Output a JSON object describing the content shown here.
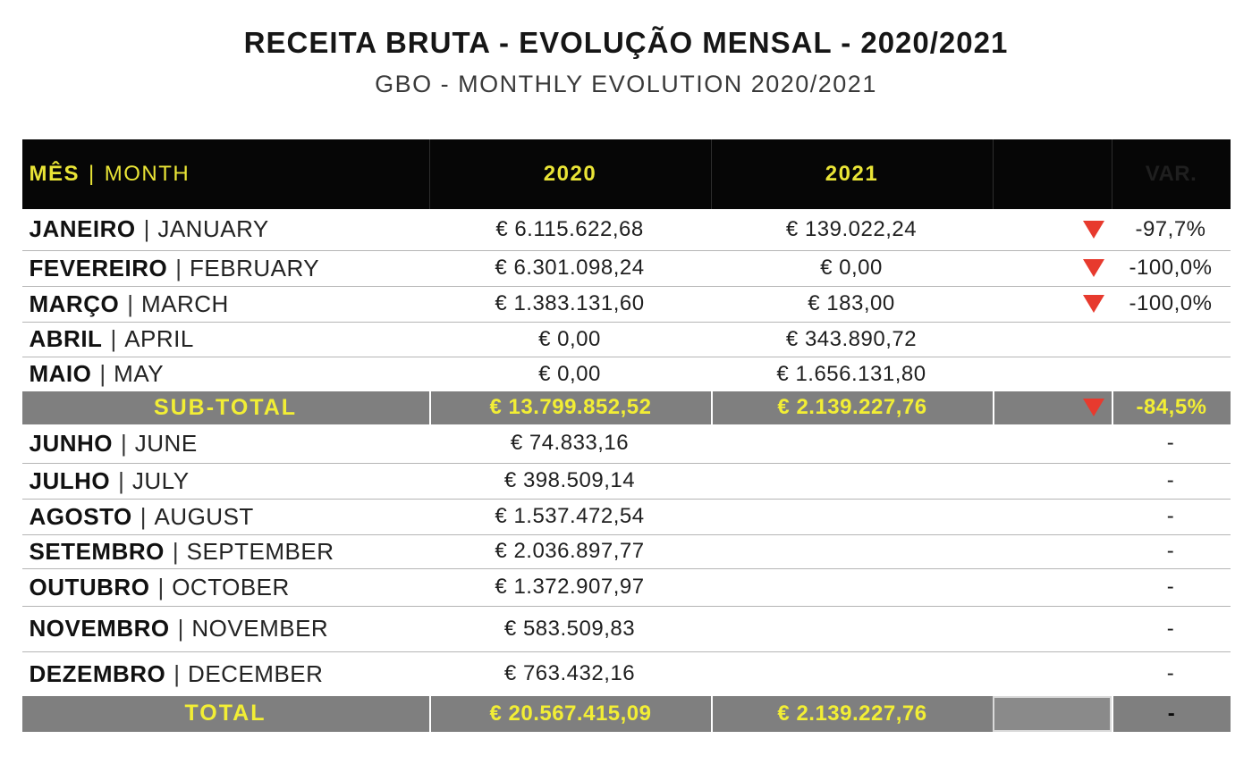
{
  "title": "RECEITA BRUTA - EVOLUÇÃO MENSAL - 2020/2021",
  "subtitle": "GBO - MONTHLY EVOLUTION 2020/2021",
  "colors": {
    "header_bg": "#060606",
    "accent_yellow": "#e9e436",
    "summary_bg": "#7f7f7f",
    "summary_yellow": "#f2ee35",
    "negative_red": "#e73a2e",
    "row_line": "#b5b5b5",
    "text_dark": "#1f1f1f"
  },
  "table": {
    "header": {
      "month_pt": "MÊS",
      "month_en": "MONTH",
      "col_2020": "2020",
      "col_2021": "2021",
      "col_var": "VAR."
    },
    "rows": [
      {
        "type": "month",
        "pt": "JANEIRO",
        "en": "JANUARY",
        "v2020": "€ 6.115.622,68",
        "v2021": "€ 139.022,24",
        "trend": "down",
        "var": "-97,7%"
      },
      {
        "type": "month",
        "pt": "FEVEREIRO",
        "en": "FEBRUARY",
        "v2020": "€ 6.301.098,24",
        "v2021": "€ 0,00",
        "trend": "down",
        "var": "-100,0%"
      },
      {
        "type": "month",
        "pt": "MARÇO",
        "en": "MARCH",
        "v2020": "€ 1.383.131,60",
        "v2021": "€ 183,00",
        "trend": "down",
        "var": "-100,0%"
      },
      {
        "type": "month",
        "pt": "ABRIL",
        "en": "APRIL",
        "v2020": "€ 0,00",
        "v2021": "€ 343.890,72",
        "trend": "none",
        "var": ""
      },
      {
        "type": "month",
        "pt": "MAIO",
        "en": "MAY",
        "v2020": "€ 0,00",
        "v2021": "€ 1.656.131,80",
        "trend": "none",
        "var": ""
      },
      {
        "type": "subtotal",
        "label": "SUB-TOTAL",
        "v2020": "€ 13.799.852,52",
        "v2021": "€ 2.139.227,76",
        "trend": "down",
        "var": "-84,5%"
      },
      {
        "type": "month",
        "pt": "JUNHO",
        "en": "JUNE",
        "v2020": "€ 74.833,16",
        "v2021": "",
        "trend": "none",
        "var": "-"
      },
      {
        "type": "month",
        "pt": "JULHO",
        "en": "JULY",
        "v2020": "€ 398.509,14",
        "v2021": "",
        "trend": "none",
        "var": "-"
      },
      {
        "type": "month",
        "pt": "AGOSTO",
        "en": "AUGUST",
        "v2020": "€ 1.537.472,54",
        "v2021": "",
        "trend": "none",
        "var": "-"
      },
      {
        "type": "month",
        "pt": "SETEMBRO",
        "en": "SEPTEMBER",
        "v2020": "€ 2.036.897,77",
        "v2021": "",
        "trend": "none",
        "var": "-"
      },
      {
        "type": "month",
        "pt": "OUTUBRO",
        "en": "OCTOBER",
        "v2020": "€ 1.372.907,97",
        "v2021": "",
        "trend": "none",
        "var": "-"
      },
      {
        "type": "month",
        "pt": "NOVEMBRO",
        "en": "NOVEMBER",
        "v2020": "€ 583.509,83",
        "v2021": "",
        "trend": "none",
        "var": "-"
      },
      {
        "type": "month",
        "pt": "DEZEMBRO",
        "en": "DECEMBER",
        "v2020": "€ 763.432,16",
        "v2021": "",
        "trend": "none",
        "var": "-"
      },
      {
        "type": "total",
        "label": "TOTAL",
        "v2020": "€ 20.567.415,09",
        "v2021": "€ 2.139.227,76",
        "trend": "none",
        "var": "-"
      }
    ]
  }
}
